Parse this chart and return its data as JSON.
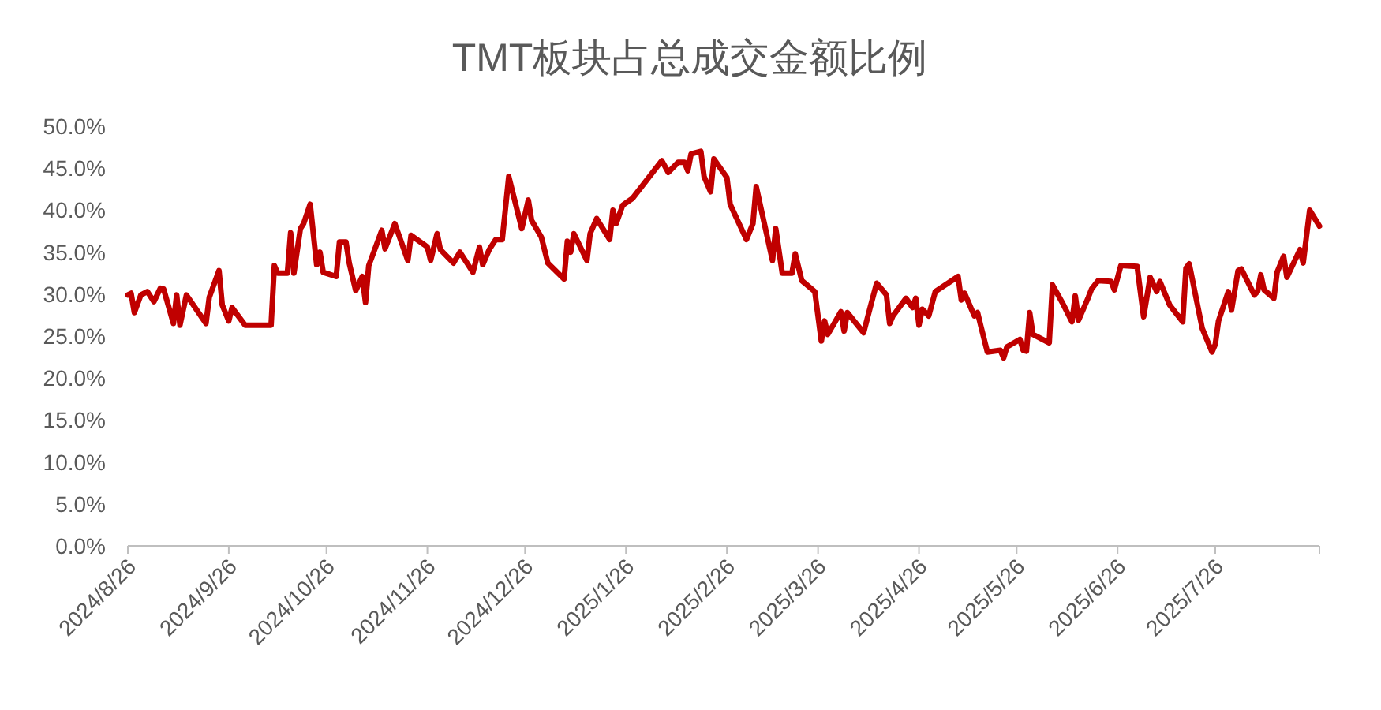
{
  "chart_data": {
    "type": "line",
    "title": "TMT板块占总成交金额比例",
    "x": [
      "2024-08-26",
      "2024-08-27",
      "2024-08-28",
      "2024-08-30",
      "2024-09-01",
      "2024-09-03",
      "2024-09-05",
      "2024-09-06",
      "2024-09-09",
      "2024-09-10",
      "2024-09-11",
      "2024-09-13",
      "2024-09-19",
      "2024-09-20",
      "2024-09-23",
      "2024-09-24",
      "2024-09-26",
      "2024-09-27",
      "2024-10-01",
      "2024-10-09",
      "2024-10-10",
      "2024-10-11",
      "2024-10-14",
      "2024-10-15",
      "2024-10-16",
      "2024-10-18",
      "2024-10-19",
      "2024-10-21",
      "2024-10-23",
      "2024-10-24",
      "2024-10-25",
      "2024-10-29",
      "2024-10-30",
      "2024-11-01",
      "2024-11-02",
      "2024-11-04",
      "2024-11-06",
      "2024-11-07",
      "2024-11-08",
      "2024-11-12",
      "2024-11-13",
      "2024-11-16",
      "2024-11-20",
      "2024-11-21",
      "2024-11-25",
      "2024-11-26",
      "2024-11-27",
      "2024-11-29",
      "2024-11-30",
      "2024-12-04",
      "2024-12-06",
      "2024-12-10",
      "2024-12-12",
      "2024-12-13",
      "2024-12-15",
      "2024-12-17",
      "2024-12-19",
      "2024-12-21",
      "2024-12-25",
      "2024-12-27",
      "2024-12-28",
      "2024-12-31",
      "2025-01-02",
      "2025-01-07",
      "2025-01-08",
      "2025-01-09",
      "2025-01-10",
      "2025-01-14",
      "2025-01-15",
      "2025-01-17",
      "2025-01-21",
      "2025-01-22",
      "2025-01-23",
      "2025-01-25",
      "2025-01-28",
      "2025-02-06",
      "2025-02-08",
      "2025-02-11",
      "2025-02-13",
      "2025-02-14",
      "2025-02-15",
      "2025-02-18",
      "2025-02-19",
      "2025-02-21",
      "2025-02-22",
      "2025-02-26",
      "2025-02-27",
      "2025-03-04",
      "2025-03-06",
      "2025-03-07",
      "2025-03-12",
      "2025-03-13",
      "2025-03-15",
      "2025-03-18",
      "2025-03-19",
      "2025-03-21",
      "2025-03-25",
      "2025-03-27",
      "2025-03-28",
      "2025-03-29",
      "2025-04-02",
      "2025-04-03",
      "2025-04-04",
      "2025-04-09",
      "2025-04-11",
      "2025-04-13",
      "2025-04-16",
      "2025-04-17",
      "2025-04-18",
      "2025-04-22",
      "2025-04-24",
      "2025-04-25",
      "2025-04-26",
      "2025-04-27",
      "2025-04-29",
      "2025-05-01",
      "2025-05-08",
      "2025-05-09",
      "2025-05-10",
      "2025-05-13",
      "2025-05-14",
      "2025-05-15",
      "2025-05-17",
      "2025-05-21",
      "2025-05-22",
      "2025-05-23",
      "2025-05-27",
      "2025-05-28",
      "2025-05-29",
      "2025-05-30",
      "2025-05-31",
      "2025-06-05",
      "2025-06-06",
      "2025-06-09",
      "2025-06-12",
      "2025-06-13",
      "2025-06-14",
      "2025-06-17",
      "2025-06-18",
      "2025-06-20",
      "2025-06-24",
      "2025-06-25",
      "2025-06-27",
      "2025-07-02",
      "2025-07-04",
      "2025-07-06",
      "2025-07-08",
      "2025-07-09",
      "2025-07-12",
      "2025-07-16",
      "2025-07-17",
      "2025-07-18",
      "2025-07-22",
      "2025-07-25",
      "2025-07-26",
      "2025-07-27",
      "2025-07-30",
      "2025-07-31",
      "2025-08-02",
      "2025-08-03",
      "2025-08-07",
      "2025-08-08",
      "2025-08-09",
      "2025-08-10",
      "2025-08-13",
      "2025-08-14",
      "2025-08-16",
      "2025-08-17",
      "2025-08-21",
      "2025-08-22",
      "2025-08-24",
      "2025-08-27"
    ],
    "series": [
      {
        "color": "#c00000",
        "values": [
          29.9,
          30.1,
          27.8,
          29.9,
          30.3,
          29.1,
          30.7,
          30.6,
          26.5,
          29.9,
          26.3,
          29.9,
          26.5,
          29.6,
          32.8,
          28.7,
          26.8,
          28.4,
          26.3,
          26.3,
          33.4,
          32.5,
          32.5,
          37.3,
          32.5,
          37.8,
          38.4,
          40.7,
          33.5,
          35.0,
          32.6,
          32.1,
          36.2,
          36.2,
          33.7,
          30.4,
          32.1,
          29.0,
          33.4,
          37.6,
          35.4,
          38.4,
          34.0,
          37.0,
          35.9,
          35.6,
          34.0,
          37.2,
          35.3,
          33.7,
          35.0,
          32.6,
          35.6,
          33.5,
          35.3,
          36.5,
          36.5,
          44.0,
          37.8,
          41.2,
          38.8,
          36.8,
          33.7,
          31.8,
          36.3,
          35.0,
          37.2,
          34.0,
          37.2,
          39.0,
          36.5,
          40.0,
          38.4,
          40.6,
          41.4,
          45.9,
          44.5,
          45.7,
          45.7,
          44.7,
          46.7,
          47.0,
          44.0,
          42.2,
          46.1,
          43.9,
          40.7,
          36.5,
          38.4,
          42.8,
          34.0,
          37.8,
          32.5,
          32.5,
          34.8,
          31.6,
          30.3,
          24.4,
          26.8,
          25.2,
          27.9,
          25.6,
          27.8,
          25.4,
          28.4,
          31.3,
          29.9,
          26.5,
          27.4,
          29.5,
          28.4,
          29.5,
          26.3,
          28.2,
          27.4,
          30.3,
          32.1,
          29.3,
          30.1,
          27.4,
          27.8,
          26.2,
          23.1,
          23.3,
          22.4,
          23.7,
          24.6,
          23.3,
          23.2,
          27.8,
          25.2,
          24.2,
          31.1,
          29.0,
          26.7,
          29.8,
          26.9,
          29.6,
          30.6,
          31.6,
          31.5,
          30.5,
          33.4,
          33.3,
          27.3,
          32.0,
          30.3,
          31.5,
          28.7,
          26.7,
          33.1,
          33.6,
          25.9,
          23.1,
          24.0,
          26.8,
          30.3,
          28.1,
          32.8,
          33.0,
          29.9,
          30.3,
          32.3,
          30.5,
          29.5,
          32.6,
          34.5,
          32.0,
          35.3,
          33.7,
          40.0,
          38.1
        ]
      }
    ],
    "xlim": [
      "2024-08-26",
      "2025-08-27"
    ],
    "xticks": [
      {
        "value": "2024-08-26",
        "label": "2024/8/26"
      },
      {
        "value": "2024-09-26",
        "label": "2024/9/26"
      },
      {
        "value": "2024-10-26",
        "label": "2024/10/26"
      },
      {
        "value": "2024-11-26",
        "label": "2024/11/26"
      },
      {
        "value": "2024-12-26",
        "label": "2024/12/26"
      },
      {
        "value": "2025-01-26",
        "label": "2025/1/26"
      },
      {
        "value": "2025-02-26",
        "label": "2025/2/26"
      },
      {
        "value": "2025-03-26",
        "label": "2025/3/26"
      },
      {
        "value": "2025-04-26",
        "label": "2025/4/26"
      },
      {
        "value": "2025-05-26",
        "label": "2025/5/26"
      },
      {
        "value": "2025-06-26",
        "label": "2025/6/26"
      },
      {
        "value": "2025-07-26",
        "label": "2025/7/26"
      }
    ],
    "ylim": [
      0,
      50
    ],
    "yticks": [
      {
        "value": 0,
        "label": "0.0%"
      },
      {
        "value": 5,
        "label": "5.0%"
      },
      {
        "value": 10,
        "label": "10.0%"
      },
      {
        "value": 15,
        "label": "15.0%"
      },
      {
        "value": 20,
        "label": "20.0%"
      },
      {
        "value": 25,
        "label": "25.0%"
      },
      {
        "value": 30,
        "label": "30.0%"
      },
      {
        "value": 35,
        "label": "35.0%"
      },
      {
        "value": 40,
        "label": "40.0%"
      },
      {
        "value": 45,
        "label": "45.0%"
      },
      {
        "value": 50,
        "label": "50.0%"
      }
    ],
    "grid": false,
    "marker": "none",
    "line_style": "solid"
  }
}
